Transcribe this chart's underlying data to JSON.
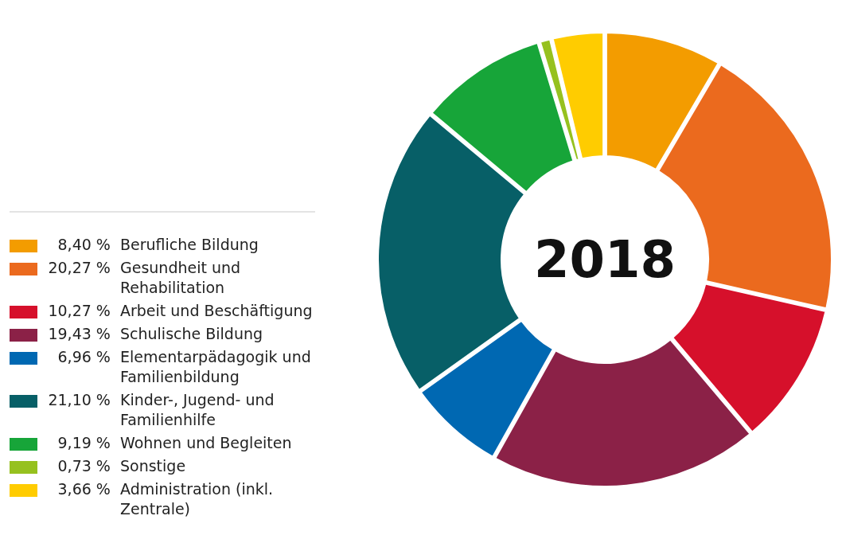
{
  "chart_data": {
    "type": "donut",
    "title": "2018",
    "categories": [
      "Berufliche Bildung",
      "Gesundheit und Rehabilitation",
      "Arbeit und Beschäftigung",
      "Schulische Bildung",
      "Elementarpädagogik und Familienbildung",
      "Kinder-, Jugend- und Familienhilfe",
      "Wohnen und Begleiten",
      "Sonstige",
      "Administration (inkl. Zentrale)"
    ],
    "values": [
      8.4,
      20.27,
      10.27,
      19.43,
      6.96,
      21.1,
      9.19,
      0.73,
      3.66
    ],
    "value_labels": [
      "8,40 %",
      "20,27 %",
      "10,27 %",
      "19,43 %",
      "6,96 %",
      "21,10 %",
      "9,19 %",
      "0,73 %",
      "3,66 %"
    ],
    "colors": [
      "#f39c00",
      "#eb6a1e",
      "#d6102b",
      "#8b2147",
      "#0068b2",
      "#075f67",
      "#17a539",
      "#96c11f",
      "#ffcc00"
    ],
    "legend": "left"
  }
}
